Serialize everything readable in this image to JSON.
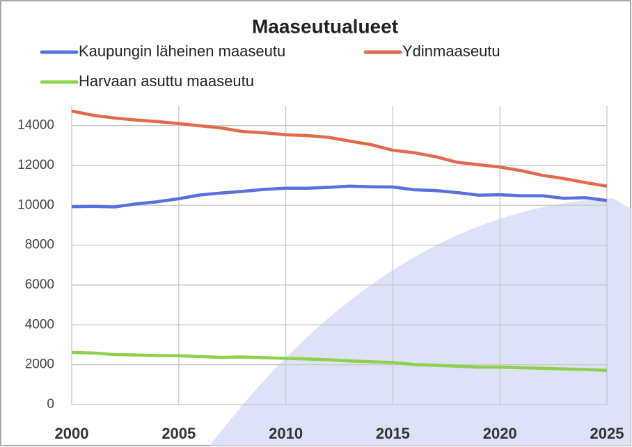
{
  "chart_data": {
    "type": "line",
    "title": "Maaseutualueet",
    "x": [
      2000,
      2001,
      2002,
      2003,
      2004,
      2005,
      2006,
      2007,
      2008,
      2009,
      2010,
      2011,
      2012,
      2013,
      2014,
      2015,
      2016,
      2017,
      2018,
      2019,
      2020,
      2021,
      2022,
      2023,
      2024,
      2025
    ],
    "series": [
      {
        "name": "Kaupungin läheinen maaseutu",
        "color": "#5b70dd",
        "values": [
          9930,
          9950,
          9920,
          10070,
          10180,
          10330,
          10520,
          10620,
          10700,
          10800,
          10860,
          10860,
          10900,
          10960,
          10930,
          10920,
          10780,
          10740,
          10640,
          10510,
          10530,
          10480,
          10480,
          10350,
          10380,
          10240
        ]
      },
      {
        "name": "Ydinmaaseutu",
        "color": "#e5694c",
        "values": [
          14730,
          14520,
          14380,
          14280,
          14200,
          14100,
          13990,
          13880,
          13700,
          13640,
          13540,
          13500,
          13410,
          13220,
          13040,
          12760,
          12640,
          12440,
          12160,
          12040,
          11920,
          11740,
          11500,
          11340,
          11140,
          10960
        ]
      },
      {
        "name": "Harvaan asuttu maaseutu",
        "color": "#8fd14f",
        "values": [
          2620,
          2590,
          2510,
          2490,
          2460,
          2450,
          2410,
          2370,
          2390,
          2350,
          2320,
          2290,
          2250,
          2190,
          2150,
          2110,
          2010,
          1970,
          1930,
          1880,
          1880,
          1850,
          1820,
          1790,
          1760,
          1720
        ]
      }
    ],
    "xlim": [
      2000,
      2025
    ],
    "xticks": [
      2000,
      2005,
      2010,
      2015,
      2020,
      2025
    ],
    "ylim": [
      0,
      15000
    ],
    "yticks": [
      0,
      2000,
      4000,
      6000,
      8000,
      10000,
      12000,
      14000
    ],
    "grid": true,
    "legend": "top"
  }
}
